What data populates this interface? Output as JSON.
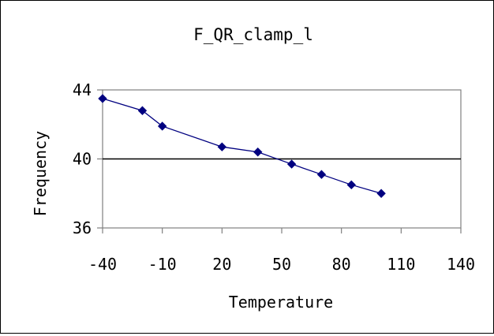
{
  "chart_data": {
    "type": "line",
    "title": "F_QR_clamp_l",
    "xlabel": "Temperature",
    "ylabel": "Frequency",
    "xlim": [
      -40,
      140
    ],
    "ylim": [
      36,
      44
    ],
    "xticks": [
      -40,
      -10,
      20,
      50,
      80,
      110,
      140
    ],
    "yticks": [
      36,
      40,
      44
    ],
    "reference_line_y": 40,
    "grid": false,
    "legend": "none",
    "series": [
      {
        "x": [
          -40,
          -20,
          -10,
          20,
          38,
          55,
          70,
          85,
          100
        ],
        "y": [
          43.5,
          42.8,
          41.9,
          40.7,
          40.4,
          39.7,
          39.1,
          38.5,
          38.0
        ]
      }
    ],
    "colors": {
      "series": "#000080",
      "axis": "#808080",
      "reference": "#000000"
    }
  }
}
